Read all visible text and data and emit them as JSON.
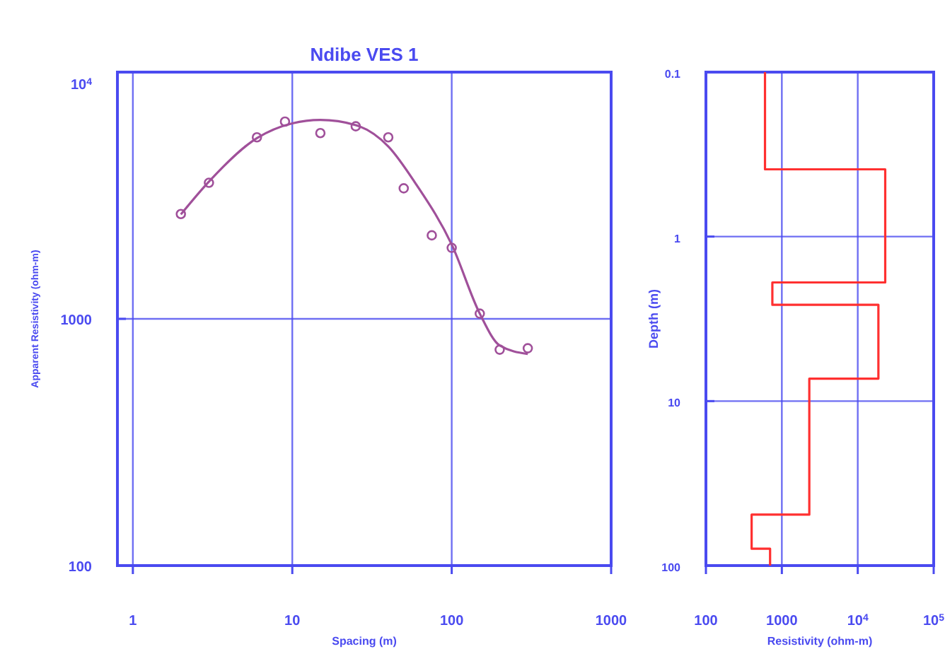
{
  "chart_data": [
    {
      "type": "scatter",
      "title": "Ndibe VES 1",
      "xlabel": "Spacing (m)",
      "ylabel": "Apparent Resistivity (ohm-m)",
      "log": "xy",
      "grid": true,
      "xlim": [
        0.8,
        1000
      ],
      "xticks": [
        1,
        10,
        100,
        1000
      ],
      "ylim": [
        100,
        10000
      ],
      "yticks": [
        100,
        1000,
        {
          "value": 10000,
          "label": "10$^{4}$"
        }
      ],
      "series": [
        {
          "marker": "circle",
          "color": "#a0509a",
          "x": [
            2,
            3,
            6,
            9,
            15,
            25,
            40,
            50,
            75,
            100,
            150,
            200,
            300
          ],
          "values": [
            2660,
            3560,
            5440,
            6300,
            5660,
            6030,
            5440,
            3380,
            2180,
            1940,
            1050,
            750,
            760
          ]
        },
        {
          "type": "line",
          "color": "#a0509a",
          "x": [
            2,
            3,
            6,
            10,
            15,
            25,
            40,
            60,
            100,
            150,
            200,
            300
          ],
          "values": [
            2650,
            3600,
            5400,
            6200,
            6400,
            6100,
            5000,
            3500,
            2000,
            1050,
            780,
            720
          ]
        }
      ]
    },
    {
      "type": "step",
      "xlabel": "Resistivity (ohm-m)",
      "ylabel": "Depth (m)",
      "log": "xy",
      "grid": true,
      "xlim": [
        100,
        100000
      ],
      "xticks": [
        100,
        1000,
        {
          "value": 10000,
          "label": "10$^{4}$"
        },
        {
          "value": 100000,
          "label": "10$^{5}$"
        }
      ],
      "ylim": [
        100,
        0.1
      ],
      "yticks": [
        0.1,
        1,
        10,
        100
      ],
      "series": [
        {
          "color": "#ff3030",
          "x": [
            600,
            600,
            23000,
            23000,
            750,
            750,
            18700,
            18700,
            2300,
            2300,
            400,
            400,
            700,
            700
          ],
          "values": [
            0.1,
            0.39,
            0.39,
            1.9,
            1.9,
            2.6,
            2.6,
            7.3,
            7.3,
            49,
            49,
            79,
            79,
            100
          ]
        }
      ]
    }
  ]
}
